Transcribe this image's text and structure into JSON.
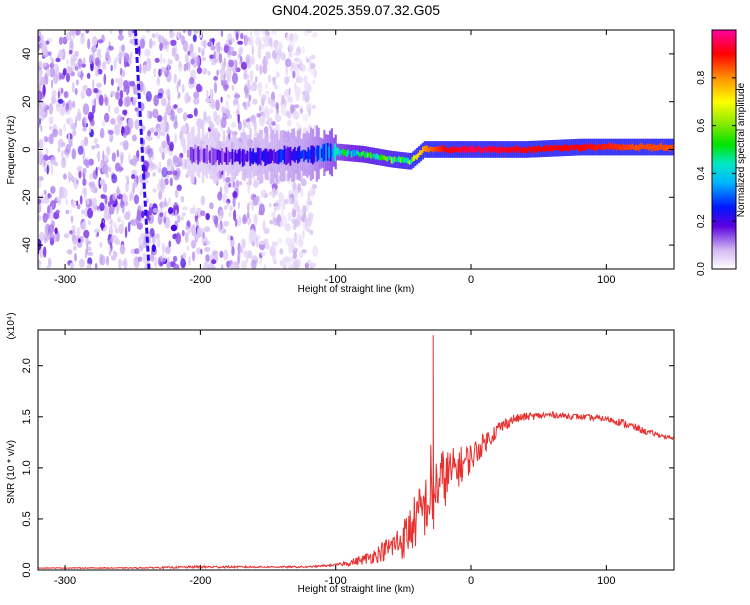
{
  "figure": {
    "title": "GN04.2025.359.07.32.G05"
  },
  "chart_data": [
    {
      "type": "heatmap",
      "title": "GN04.2025.359.07.32.G05",
      "xlabel": "Height of straight line (km)",
      "ylabel": "Frequency (Hz)",
      "xlim": [
        -320,
        150
      ],
      "ylim": [
        -50,
        50
      ],
      "x_ticks": [
        -300,
        -200,
        -100,
        0,
        100
      ],
      "x_tick_labels": [
        "-300",
        "-200",
        "-100",
        "0",
        "100"
      ],
      "y_ticks": [
        -40,
        -20,
        0,
        20,
        40
      ],
      "y_tick_labels": [
        "-40",
        "-20",
        "0",
        "20",
        "40"
      ],
      "colorbar": {
        "label": "Normalized spectral amplitude",
        "range": [
          0,
          1
        ],
        "ticks": [
          0.0,
          0.2,
          0.4,
          0.6,
          0.8
        ],
        "tick_labels": [
          "0.0",
          "0.2",
          "0.4",
          "0.6",
          "0.8"
        ]
      },
      "noise_region_x": [
        -320,
        -115
      ],
      "signal_track": {
        "x": [
          -210,
          -180,
          -150,
          -120,
          -100,
          -80,
          -60,
          -45,
          -35,
          -20,
          0,
          40,
          80,
          100,
          120,
          150
        ],
        "frequency": [
          -2,
          -3,
          -3,
          -2,
          -1,
          -2,
          -4,
          -5,
          0,
          0,
          0,
          0,
          1,
          1,
          1,
          1
        ],
        "amplitude": [
          0.15,
          0.2,
          0.25,
          0.3,
          0.45,
          0.55,
          0.6,
          0.65,
          0.8,
          0.9,
          0.95,
          0.9,
          0.9,
          0.88,
          0.85,
          0.85
        ]
      },
      "diagonal_streak": {
        "x": [
          -248,
          -238
        ],
        "frequency": [
          50,
          -50
        ]
      }
    },
    {
      "type": "line",
      "xlabel": "Height of straight line (km)",
      "ylabel": "SNR (10 * v/v)",
      "y_scale_label": "(x10⁴)",
      "xlim": [
        -320,
        150
      ],
      "ylim": [
        0,
        2.35
      ],
      "x_ticks": [
        -300,
        -200,
        -100,
        0,
        100
      ],
      "x_tick_labels": [
        "-300",
        "-200",
        "-100",
        "0",
        "100"
      ],
      "y_ticks": [
        0.0,
        0.5,
        1.0,
        1.5,
        2.0
      ],
      "y_tick_labels": [
        "0.0",
        "0.5",
        "1.0",
        "1.5",
        "2.0"
      ],
      "series": [
        {
          "color": "#e8302e",
          "x": [
            -320,
            -300,
            -250,
            -200,
            -150,
            -120,
            -100,
            -90,
            -80,
            -70,
            -60,
            -50,
            -45,
            -40,
            -35,
            -30,
            -28,
            -26,
            -20,
            -15,
            -10,
            -5,
            0,
            10,
            20,
            30,
            40,
            60,
            80,
            100,
            110,
            120,
            130,
            140,
            150
          ],
          "y": [
            0.02,
            0.02,
            0.02,
            0.03,
            0.03,
            0.03,
            0.05,
            0.07,
            0.1,
            0.15,
            0.22,
            0.3,
            0.4,
            0.5,
            0.6,
            0.7,
            2.3,
            0.8,
            0.9,
            0.95,
            1.0,
            1.05,
            1.1,
            1.25,
            1.38,
            1.47,
            1.5,
            1.52,
            1.5,
            1.48,
            1.45,
            1.4,
            1.35,
            1.32,
            1.28
          ],
          "noise": [
            0.003,
            0.004,
            0.005,
            0.012,
            0.008,
            0.008,
            0.01,
            0.03,
            0.05,
            0.08,
            0.12,
            0.2,
            0.25,
            0.28,
            0.3,
            0.35,
            0.35,
            0.35,
            0.3,
            0.25,
            0.2,
            0.18,
            0.15,
            0.1,
            0.08,
            0.05,
            0.04,
            0.03,
            0.03,
            0.03,
            0.04,
            0.04,
            0.03,
            0.02,
            0.02
          ]
        }
      ]
    }
  ]
}
